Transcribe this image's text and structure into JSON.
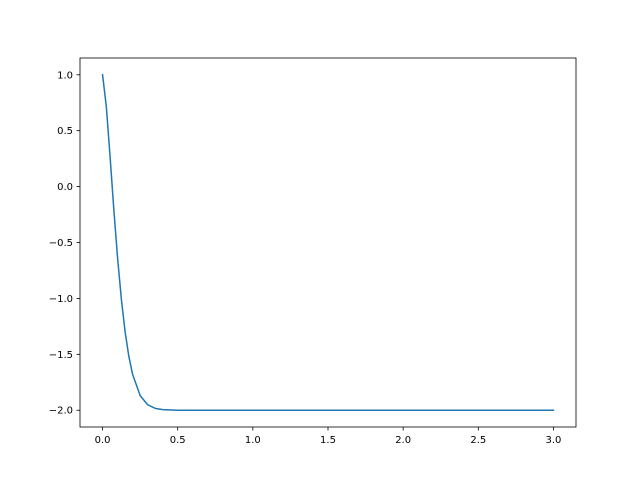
{
  "chart_data": {
    "type": "line",
    "title": "",
    "xlabel": "",
    "ylabel": "",
    "xlim": [
      -0.15,
      3.15
    ],
    "ylim": [
      -2.15,
      1.15
    ],
    "xticks": [
      0.0,
      0.5,
      1.0,
      1.5,
      2.0,
      2.5,
      3.0
    ],
    "xtick_labels": [
      "0.0",
      "0.5",
      "1.0",
      "1.5",
      "2.0",
      "2.5",
      "3.0"
    ],
    "yticks": [
      -2.0,
      -1.5,
      -1.0,
      -0.5,
      0.0,
      0.5,
      1.0
    ],
    "ytick_labels": [
      "−2.0",
      "−1.5",
      "−1.0",
      "−0.5",
      "0.0",
      "0.5",
      "1.0"
    ],
    "grid": false,
    "series": [
      {
        "color": "#1f77b4",
        "x": [
          0,
          0.025,
          0.05,
          0.075,
          0.1,
          0.125,
          0.15,
          0.175,
          0.2,
          0.25,
          0.3,
          0.35,
          0.4,
          0.5,
          0.6,
          1.0,
          1.5,
          2.0,
          2.5,
          3.0
        ],
        "y": [
          1.0,
          0.718,
          0.27,
          -0.204,
          -0.638,
          -1.005,
          -1.298,
          -1.519,
          -1.679,
          -1.868,
          -1.951,
          -1.983,
          -1.995,
          -2.0,
          -2.0,
          -2.0,
          -2.0,
          -2.0,
          -2.0,
          -2.0
        ]
      }
    ]
  }
}
